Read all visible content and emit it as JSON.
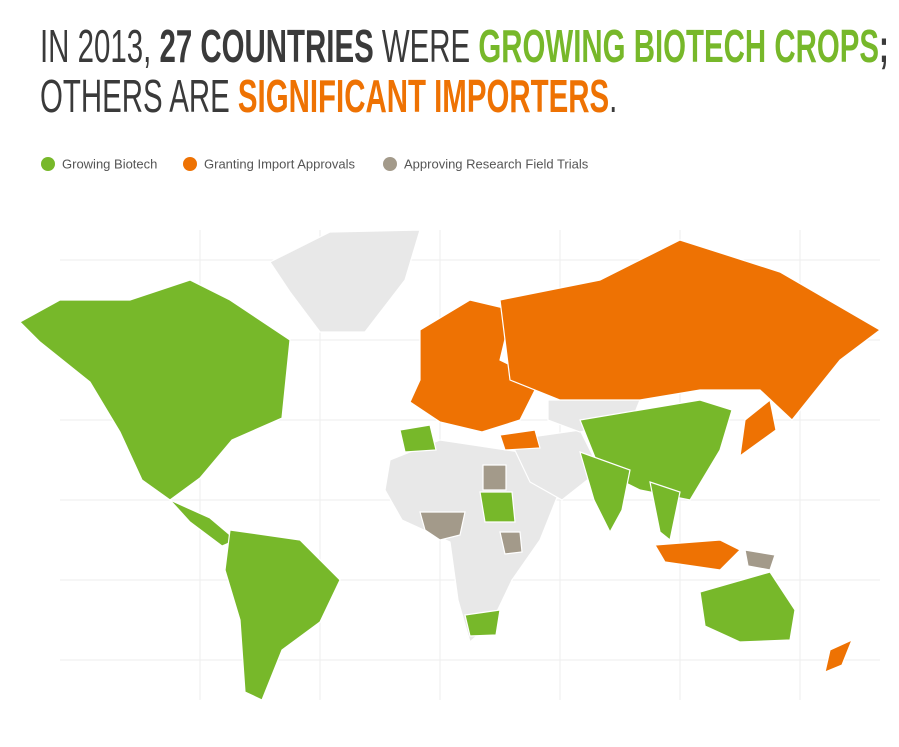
{
  "title": {
    "lines": [
      {
        "segments": [
          {
            "text": "IN 2013, ",
            "bold": false
          },
          {
            "text": "27 COUNTRIES",
            "bold": true
          },
          {
            "text": " WERE ",
            "bold": false
          },
          {
            "text": "GROWING BIOTECH CROPS",
            "bold": true,
            "color": "#77b82a"
          },
          {
            "text": ";",
            "bold": true
          }
        ]
      },
      {
        "segments": [
          {
            "text": "OTHERS ARE ",
            "bold": false
          },
          {
            "text": "SIGNIFICANT IMPORTERS",
            "bold": true,
            "color": "#ee7203"
          },
          {
            "text": ".",
            "bold": false
          }
        ]
      }
    ]
  },
  "legend": [
    {
      "name": "Growing Biotech",
      "color": "#77b82a"
    },
    {
      "name": "Granting Import Approvals",
      "color": "#ee7203"
    },
    {
      "name": "Approving Research Field Trials",
      "color": "#a39a8a"
    }
  ]
}
